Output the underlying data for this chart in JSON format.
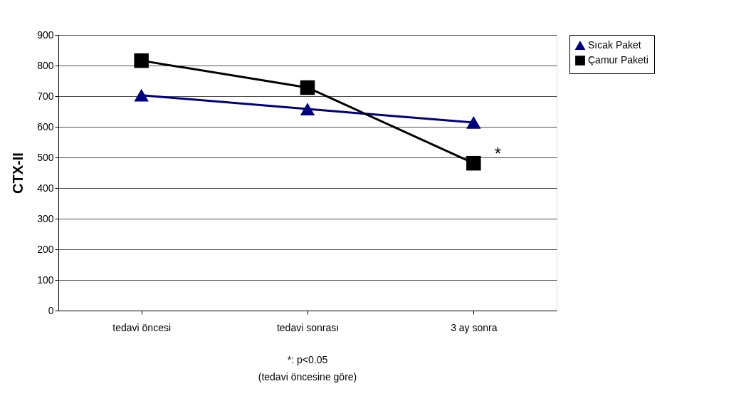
{
  "chart_data": {
    "type": "line",
    "ylabel": "CTX-II",
    "categories": [
      "tedavi öncesi",
      "tedavi sonrası",
      "3 ay sonra"
    ],
    "series": [
      {
        "name": "Sıcak Paket",
        "color": "#000080",
        "values": [
          703,
          658,
          614
        ],
        "marker": "triangle"
      },
      {
        "name": "Çamur Paketi",
        "color": "#000000",
        "values": [
          816,
          728,
          481
        ],
        "marker": "square"
      }
    ],
    "ylim": [
      0,
      900
    ],
    "yticks": [
      0,
      100,
      200,
      300,
      400,
      500,
      600,
      700,
      800,
      900
    ],
    "grid": "y",
    "legend": "right",
    "line_style": "solid",
    "annotations": [
      {
        "text": "*",
        "x": "3 ay sonra",
        "y": 510
      },
      "*: p<0.05",
      "(tedavi öncesine göre)"
    ]
  }
}
